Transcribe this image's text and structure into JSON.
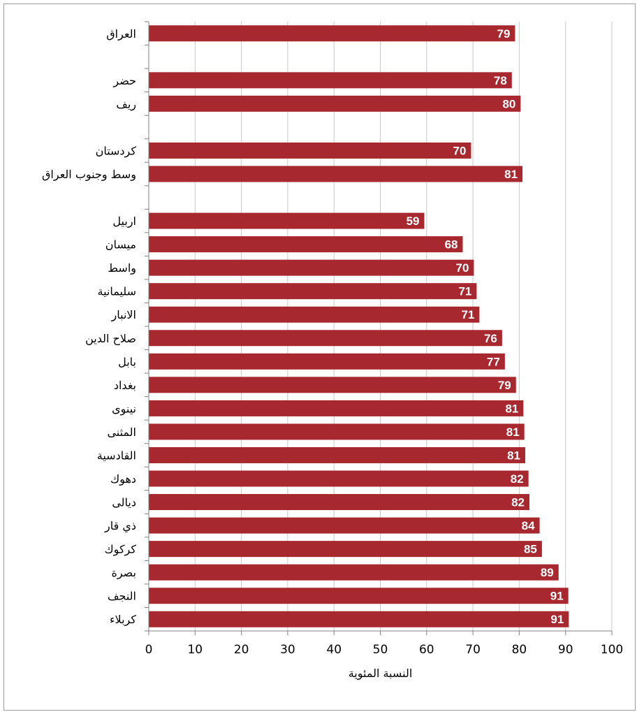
{
  "chart_data": {
    "type": "bar",
    "orientation": "horizontal",
    "categories": [
      "العراق",
      "",
      "حضر",
      "ريف",
      "",
      "كردستان",
      "وسط وجنوب العراق",
      "",
      "اربيل",
      "ميسان",
      "واسط",
      "سليمانية",
      "الانبار",
      "صلاح الدين",
      "بابل",
      "بغداد",
      "نينوى",
      "المثنى",
      "القادسية",
      "دهوك",
      "ديالى",
      "ذي قار",
      "كركوك",
      "بصرة",
      "النجف",
      "كربلاء"
    ],
    "values": [
      79.1,
      null,
      78.4,
      80.3,
      null,
      69.6,
      80.7,
      null,
      59.5,
      67.8,
      70.2,
      70.8,
      71.4,
      76.3,
      76.9,
      79.3,
      80.9,
      81.1,
      81.3,
      82.0,
      82.2,
      84.4,
      84.9,
      88.5,
      90.6,
      90.7
    ],
    "data_labels": [
      "79",
      "",
      "78",
      "80",
      "",
      "70",
      "81",
      "",
      "59",
      "68",
      "70",
      "71",
      "71",
      "76",
      "77",
      "79",
      "81",
      "81",
      "81",
      "82",
      "82",
      "84",
      "85",
      "89",
      "91",
      "91"
    ],
    "xlabel": "النسبة المئوية",
    "ylabel": "",
    "xlim": [
      0,
      100
    ],
    "xticks": [
      "0",
      "10",
      "20",
      "30",
      "40",
      "50",
      "60",
      "70",
      "80",
      "90",
      "100"
    ],
    "grid": "vertical",
    "legend": "none",
    "bar_color": "#a8282f"
  }
}
